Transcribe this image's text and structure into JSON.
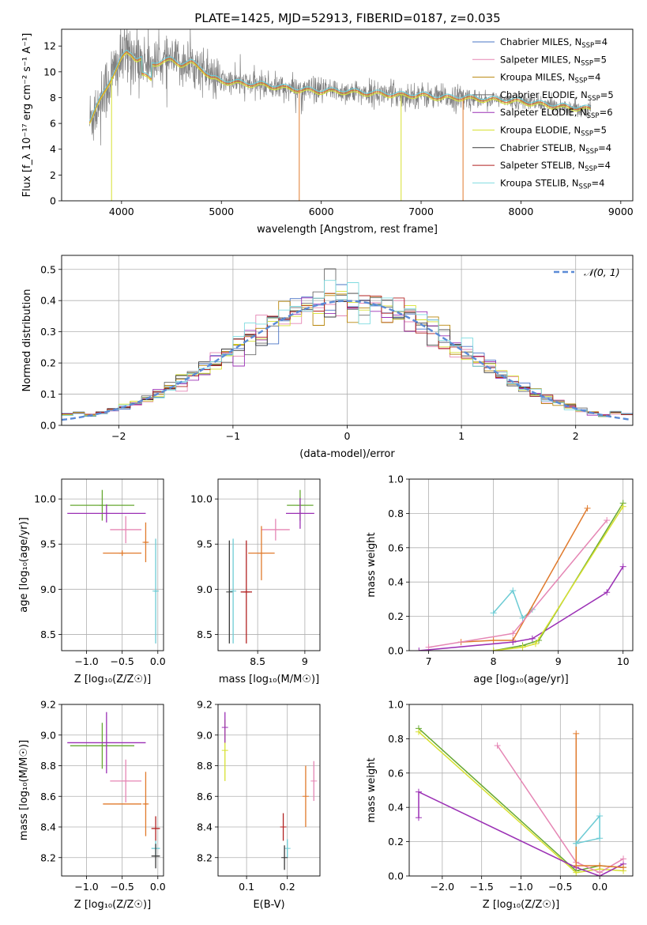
{
  "title": "PLATE=1425, MJD=52913, FIBERID=0187, z=0.035",
  "colors": {
    "Chabrier MILES": "#4a74c6",
    "Salpeter MILES": "#e586b4",
    "Kroupa MILES": "#b8860b",
    "Chabrier ELODIE": "#6b6b6b",
    "Salpeter ELODIE": "#9b30b5",
    "Kroupa ELODIE": "#d7e030",
    "Chabrier STELIB": "#3a3a3a",
    "Salpeter STELIB": "#b22222",
    "Kroupa STELIB": "#7fdbe0",
    "data": "#808080",
    "fit_orange": "#e07a2c",
    "fit_green": "#66a832",
    "fit_cyan": "#6ccbd4",
    "normal": "#5b8bd6"
  },
  "chart_data": [
    {
      "id": "spectrum",
      "type": "line",
      "title": "PLATE=1425, MJD=52913, FIBERID=0187, z=0.035",
      "xlabel": "wavelength [Angstrom, rest frame]",
      "ylabel": "Flux [f_λ 10⁻¹⁷ erg cm⁻² s⁻¹ A⁻¹]",
      "xlim": [
        3400,
        9120
      ],
      "ylim": [
        0,
        13.3
      ],
      "xticks": [
        4000,
        5000,
        6000,
        7000,
        8000,
        9000
      ],
      "yticks": [
        0,
        2,
        4,
        6,
        8,
        10,
        12
      ],
      "grid": false,
      "legend_position": "upper right",
      "legend": [
        {
          "label": "Chabrier MILES, N",
          "sub": "SSP",
          "suffix": "=4",
          "color_key": "Chabrier MILES"
        },
        {
          "label": "Salpeter MILES, N",
          "sub": "SSP",
          "suffix": "=5",
          "color_key": "Salpeter MILES"
        },
        {
          "label": "Kroupa MILES, N",
          "sub": "SSP",
          "suffix": "=4",
          "color_key": "Kroupa MILES"
        },
        {
          "label": "Chabrier ELODIE, N",
          "sub": "SSP",
          "suffix": "=5",
          "color_key": "Chabrier ELODIE"
        },
        {
          "label": "Salpeter ELODIE, N",
          "sub": "SSP",
          "suffix": "=6",
          "color_key": "Salpeter ELODIE"
        },
        {
          "label": "Kroupa ELODIE, N",
          "sub": "SSP",
          "suffix": "=5",
          "color_key": "Kroupa ELODIE"
        },
        {
          "label": "Chabrier STELIB, N",
          "sub": "SSP",
          "suffix": "=4",
          "color_key": "Chabrier STELIB"
        },
        {
          "label": "Salpeter STELIB, N",
          "sub": "SSP",
          "suffix": "=4",
          "color_key": "Salpeter STELIB"
        },
        {
          "label": "Kroupa STELIB, N",
          "sub": "SSP",
          "suffix": "=4",
          "color_key": "Kroupa STELIB"
        }
      ],
      "continuum": {
        "x": [
          3680,
          3720,
          3760,
          3800,
          3850,
          3900,
          3950,
          4000,
          4050,
          4100,
          4150,
          4200,
          4300,
          4400,
          4500,
          4600,
          4700,
          4800,
          4900,
          5000,
          5200,
          5400,
          5600,
          5800,
          6000,
          6200,
          6400,
          6600,
          6800,
          7000,
          7200,
          7400,
          7600,
          7800,
          8000,
          8200,
          8400,
          8600,
          8700
        ],
        "y": [
          6.2,
          6.8,
          7.4,
          8.0,
          8.8,
          9.6,
          10.3,
          11.0,
          11.5,
          11.4,
          11.0,
          11.0,
          10.6,
          10.8,
          10.9,
          10.6,
          10.7,
          10.3,
          9.5,
          9.3,
          9.1,
          9.0,
          8.8,
          8.6,
          8.5,
          8.5,
          8.4,
          8.3,
          8.2,
          8.2,
          8.0,
          8.0,
          7.9,
          7.8,
          7.7,
          7.5,
          7.3,
          7.2,
          7.1
        ]
      }
    },
    {
      "id": "residuals",
      "type": "line",
      "xlabel": "(data-model)/error",
      "ylabel": "Normed distribution",
      "xlim": [
        -2.5,
        2.5
      ],
      "ylim": [
        0,
        0.545
      ],
      "xticks": [
        -2,
        -1,
        0,
        1,
        2
      ],
      "yticks": [
        0.0,
        0.1,
        0.2,
        0.3,
        0.4,
        0.5
      ],
      "grid": true,
      "legend_position": "upper right",
      "legend": [
        {
          "label": "𝒩(0, 1)",
          "color_key": "normal"
        }
      ],
      "series": [
        {
          "name": "𝒩(0, 1)",
          "mean": 0,
          "sigma": 1
        }
      ],
      "hist_bins": 50
    },
    {
      "id": "age_vs_Z",
      "type": "scatter",
      "xlabel": "Z [log₁₀(Z/Z☉)]",
      "ylabel": "age  [log₁₀(age/yr)]",
      "xlim": [
        -1.35,
        0.08
      ],
      "ylim": [
        8.32,
        10.22
      ],
      "xticks": [
        -1.0,
        -0.5,
        0.0
      ],
      "xticklabels": [
        "−1.0",
        "−0.5",
        "0.0"
      ],
      "yticks": [
        8.5,
        9.0,
        9.5,
        10.0
      ],
      "grid": true,
      "errorbars": [
        {
          "color_key": "fit_green",
          "x": -0.78,
          "xerr": 0.45,
          "y": 9.93,
          "yerr": 0.17
        },
        {
          "color_key": "Salpeter ELODIE",
          "x": -0.72,
          "xerr": 0.55,
          "y": 9.84,
          "yerr": 0.1
        },
        {
          "color_key": "Salpeter MILES",
          "x": -0.45,
          "xerr": 0.22,
          "y": 9.66,
          "yerr": 0.15
        },
        {
          "color_key": "fit_orange",
          "x": -0.5,
          "xerr": 0.27,
          "y": 9.4,
          "yerr": 0.03
        },
        {
          "color_key": "fit_orange",
          "x": -0.17,
          "xerr": 0.03,
          "y": 9.52,
          "yerr": 0.22
        },
        {
          "color_key": "fit_cyan",
          "x": -0.03,
          "xerr": 0.02,
          "y": 8.98,
          "yerr": 0.58
        }
      ]
    },
    {
      "id": "age_vs_mass",
      "type": "scatter",
      "xlabel": "mass [log₁₀(M/M☉)]",
      "ylabel": "",
      "xlim": [
        8.08,
        9.16
      ],
      "ylim": [
        8.32,
        10.22
      ],
      "xticks": [
        8.5,
        9.0
      ],
      "yticks": [
        8.5,
        9.0,
        9.5,
        10.0
      ],
      "grid": true,
      "errorbars": [
        {
          "color_key": "fit_green",
          "x": 8.95,
          "xerr": 0.14,
          "y": 9.93,
          "yerr": 0.17
        },
        {
          "color_key": "Salpeter ELODIE",
          "x": 8.95,
          "xerr": 0.15,
          "y": 9.84,
          "yerr": 0.17
        },
        {
          "color_key": "Salpeter MILES",
          "x": 8.69,
          "xerr": 0.15,
          "y": 9.66,
          "yerr": 0.12
        },
        {
          "color_key": "fit_orange",
          "x": 8.54,
          "xerr": 0.14,
          "y": 9.4,
          "yerr": 0.3
        },
        {
          "color_key": "Chabrier STELIB",
          "x": 8.2,
          "xerr": 0.0,
          "y": 8.97,
          "yerr": 0.57
        },
        {
          "color_key": "fit_cyan",
          "x": 8.24,
          "xerr": 0.0,
          "y": 8.98,
          "yerr": 0.58
        },
        {
          "color_key": "Salpeter STELIB",
          "x": 8.38,
          "xerr": 0.06,
          "y": 8.97,
          "yerr": 0.57
        }
      ]
    },
    {
      "id": "massweight_vs_age",
      "type": "line",
      "xlabel": "age  [log₁₀(age/yr)]",
      "ylabel": "mass weight",
      "xlim": [
        6.7,
        10.15
      ],
      "ylim": [
        0,
        1
      ],
      "xticks": [
        7,
        8,
        9,
        10
      ],
      "yticks": [
        0.0,
        0.2,
        0.4,
        0.6,
        0.8,
        1.0
      ],
      "grid": true,
      "series": [
        {
          "color_key": "fit_cyan",
          "x": [
            8.0,
            8.3,
            8.45,
            8.6
          ],
          "y": [
            0.22,
            0.35,
            0.19,
            0.24
          ]
        },
        {
          "color_key": "fit_orange",
          "x": [
            7.5,
            8.0,
            8.3,
            9.45
          ],
          "y": [
            0.05,
            0.06,
            0.06,
            0.83
          ]
        },
        {
          "color_key": "Salpeter MILES",
          "x": [
            7.0,
            8.3,
            9.75
          ],
          "y": [
            0.02,
            0.1,
            0.76
          ]
        },
        {
          "color_key": "Salpeter ELODIE",
          "x": [
            6.85,
            8.3,
            8.6,
            9.75,
            10.0
          ],
          "y": [
            0.0,
            0.05,
            0.07,
            0.34,
            0.49
          ]
        },
        {
          "color_key": "fit_green",
          "x": [
            8.0,
            8.45,
            8.7,
            10.0
          ],
          "y": [
            0.0,
            0.03,
            0.06,
            0.86
          ]
        },
        {
          "color_key": "Kroupa ELODIE",
          "x": [
            8.0,
            8.45,
            8.65,
            10.0
          ],
          "y": [
            0.0,
            0.02,
            0.04,
            0.84
          ]
        }
      ]
    },
    {
      "id": "mass_vs_Z",
      "type": "scatter",
      "xlabel": "Z [log₁₀(Z/Z☉)]",
      "ylabel": "mass [log₁₀(M/M☉)]",
      "xlim": [
        -1.35,
        0.08
      ],
      "ylim": [
        8.08,
        9.2
      ],
      "xticks": [
        -1.0,
        -0.5,
        0.0
      ],
      "xticklabels": [
        "−1.0",
        "−0.5",
        "0.0"
      ],
      "yticks": [
        8.2,
        8.4,
        8.6,
        8.8,
        9.0,
        9.2
      ],
      "grid": true,
      "errorbars": [
        {
          "color_key": "fit_green",
          "x": -0.78,
          "xerr": 0.45,
          "y": 8.93,
          "yerr": 0.15
        },
        {
          "color_key": "Salpeter ELODIE",
          "x": -0.72,
          "xerr": 0.55,
          "y": 8.95,
          "yerr": 0.2
        },
        {
          "color_key": "Salpeter MILES",
          "x": -0.45,
          "xerr": 0.22,
          "y": 8.7,
          "yerr": 0.14
        },
        {
          "color_key": "fit_orange",
          "x": -0.5,
          "xerr": 0.27,
          "y": 8.55,
          "yerr": 0.0
        },
        {
          "color_key": "fit_orange",
          "x": -0.17,
          "xerr": 0.03,
          "y": 8.55,
          "yerr": 0.21
        },
        {
          "color_key": "Salpeter STELIB",
          "x": -0.03,
          "xerr": 0.06,
          "y": 8.39,
          "yerr": 0.08
        },
        {
          "color_key": "fit_cyan",
          "x": -0.03,
          "xerr": 0.06,
          "y": 8.26,
          "yerr": 0.05
        },
        {
          "color_key": "Chabrier STELIB",
          "x": -0.03,
          "xerr": 0.06,
          "y": 8.21,
          "yerr": 0.08
        }
      ]
    },
    {
      "id": "mass_vs_EBV",
      "type": "scatter",
      "xlabel": "E(B-V)",
      "ylabel": "",
      "xlim": [
        0.03,
        0.28
      ],
      "ylim": [
        8.08,
        9.2
      ],
      "xticks": [
        0.1,
        0.2
      ],
      "yticks": [
        8.2,
        8.4,
        8.6,
        8.8,
        9.0,
        9.2
      ],
      "grid": true,
      "errorbars": [
        {
          "color_key": "Kroupa ELODIE",
          "x": 0.047,
          "xerr": 0.0,
          "y": 8.9,
          "yerr": 0.2
        },
        {
          "color_key": "Salpeter ELODIE",
          "x": 0.047,
          "xerr": 0.0,
          "y": 9.05,
          "yerr": 0.1
        },
        {
          "color_key": "Salpeter MILES",
          "x": 0.265,
          "xerr": 0.0,
          "y": 8.7,
          "yerr": 0.13
        },
        {
          "color_key": "fit_orange",
          "x": 0.245,
          "xerr": 0.0,
          "y": 8.6,
          "yerr": 0.2
        },
        {
          "color_key": "Salpeter STELIB",
          "x": 0.19,
          "xerr": 0.0,
          "y": 8.4,
          "yerr": 0.09
        },
        {
          "color_key": "fit_cyan",
          "x": 0.2,
          "xerr": 0.0,
          "y": 8.26,
          "yerr": 0.06
        },
        {
          "color_key": "Chabrier STELIB",
          "x": 0.193,
          "xerr": 0.0,
          "y": 8.2,
          "yerr": 0.08
        }
      ]
    },
    {
      "id": "massweight_vs_Z",
      "type": "line",
      "xlabel": "Z [log₁₀(Z/Z☉)]",
      "ylabel": "mass weight",
      "xlim": [
        -2.42,
        0.42
      ],
      "ylim": [
        0,
        1
      ],
      "xticks": [
        -2.0,
        -1.5,
        -1.0,
        -0.5,
        0.0
      ],
      "xticklabels": [
        "−2.0",
        "−1.5",
        "−1.0",
        "−0.5",
        "0.0"
      ],
      "yticks": [
        0.0,
        0.2,
        0.4,
        0.6,
        0.8,
        1.0
      ],
      "grid": true,
      "series": [
        {
          "color_key": "fit_green",
          "x": [
            -2.3,
            -0.3,
            0.0,
            0.3
          ],
          "y": [
            0.86,
            0.03,
            0.06,
            0.05
          ]
        },
        {
          "color_key": "Kroupa ELODIE",
          "x": [
            -2.3,
            -0.3,
            0.0,
            0.3
          ],
          "y": [
            0.84,
            0.02,
            0.04,
            0.03
          ]
        },
        {
          "color_key": "Salpeter ELODIE",
          "x": [
            -2.3,
            -2.3,
            -0.3,
            0.0,
            0.3
          ],
          "y": [
            0.34,
            0.49,
            0.05,
            0.0,
            0.07
          ]
        },
        {
          "color_key": "Salpeter MILES",
          "x": [
            -1.3,
            -0.3,
            0.0,
            0.3
          ],
          "y": [
            0.76,
            0.08,
            0.02,
            0.1
          ]
        },
        {
          "color_key": "fit_orange",
          "x": [
            -0.3,
            -0.3,
            0.0,
            0.3
          ],
          "y": [
            0.83,
            0.06,
            0.06,
            0.05
          ]
        },
        {
          "color_key": "fit_cyan",
          "x": [
            -0.3,
            0.0,
            0.0,
            -0.3
          ],
          "y": [
            0.19,
            0.22,
            0.35,
            0.19
          ]
        }
      ]
    }
  ]
}
